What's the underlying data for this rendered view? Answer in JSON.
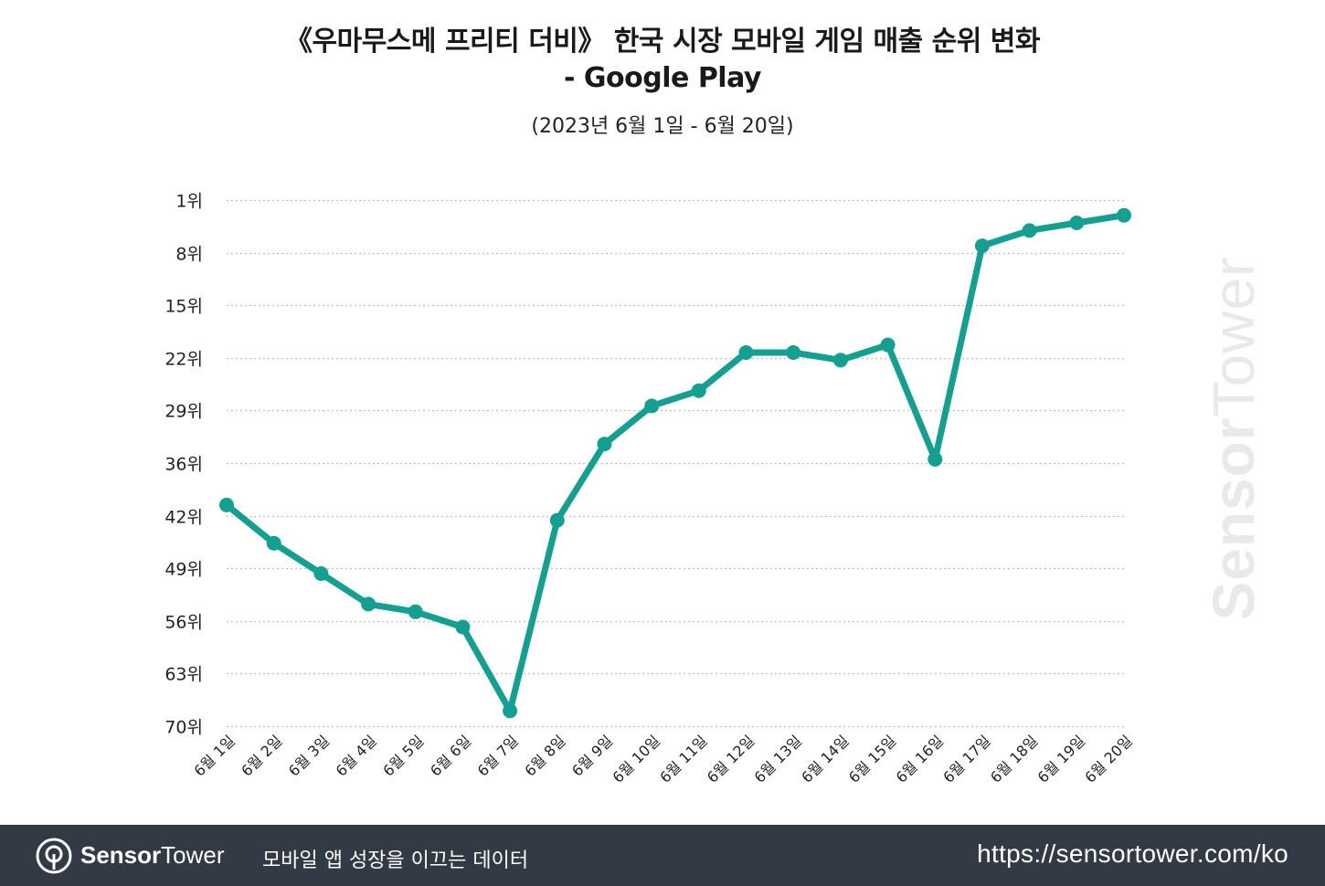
{
  "header": {
    "title_line1": "《우마무스메 프리티 더비》 한국 시장 모바일 게임 매출 순위 변화",
    "title_line2": "- Google Play",
    "subtitle": "(2023년 6월 1일 - 6월 20일)"
  },
  "watermark": {
    "part1": "Sensor",
    "part2": "Tower"
  },
  "footer": {
    "brand_part1": "Sensor",
    "brand_part2": "Tower",
    "tagline": "모바일 앱 성장을 이끄는 데이터",
    "url": "https://sensortower.com/ko"
  },
  "colors": {
    "line": "#14a091",
    "grid": "#bfbfbf",
    "footer_bg": "#323a45"
  },
  "chart_data": {
    "type": "line",
    "title": "《우마무스메 프리티 더비》 한국 시장 모바일 게임 매출 순위 변화 - Google Play",
    "subtitle": "(2023년 6월 1일 - 6월 20일)",
    "xlabel": "",
    "ylabel": "",
    "y_inverted": true,
    "ylim": [
      1,
      70
    ],
    "y_ticks": [
      "1위",
      "8위",
      "15위",
      "22위",
      "29위",
      "36위",
      "42위",
      "49위",
      "56위",
      "63위",
      "70위"
    ],
    "categories": [
      "6월 1일",
      "6월 2일",
      "6월 3일",
      "6월 4일",
      "6월 5일",
      "6월 6일",
      "6월 7일",
      "6월 8일",
      "6월 9일",
      "6월 10일",
      "6월 11일",
      "6월 12일",
      "6월 13일",
      "6월 14일",
      "6월 15일",
      "6월 16일",
      "6월 17일",
      "6월 18일",
      "6월 19일",
      "6월 20일"
    ],
    "series": [
      {
        "name": "Google Play 매출 순위",
        "values": [
          41,
          46,
          50,
          54,
          55,
          57,
          68,
          43,
          33,
          28,
          26,
          21,
          21,
          22,
          20,
          35,
          7,
          5,
          4,
          3
        ]
      }
    ],
    "grid": true,
    "legend": "none"
  }
}
